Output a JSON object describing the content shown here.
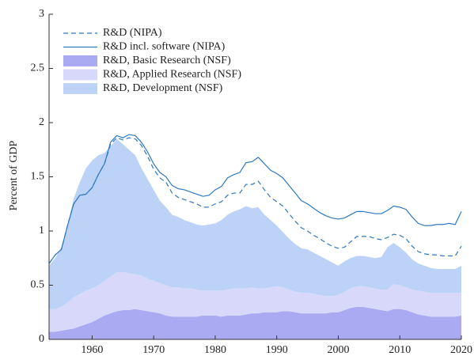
{
  "chart_data": {
    "type": "area",
    "ylabel": "Percent of GDP",
    "x": [
      1953,
      1954,
      1955,
      1956,
      1957,
      1958,
      1959,
      1960,
      1961,
      1962,
      1963,
      1964,
      1965,
      1966,
      1967,
      1968,
      1969,
      1970,
      1971,
      1972,
      1973,
      1974,
      1975,
      1976,
      1977,
      1978,
      1979,
      1980,
      1981,
      1982,
      1983,
      1984,
      1985,
      1986,
      1987,
      1988,
      1989,
      1990,
      1991,
      1992,
      1993,
      1994,
      1995,
      1996,
      1997,
      1998,
      1999,
      2000,
      2001,
      2002,
      2003,
      2004,
      2005,
      2006,
      2007,
      2008,
      2009,
      2010,
      2011,
      2012,
      2013,
      2014,
      2015,
      2016,
      2017,
      2018,
      2019,
      2020
    ],
    "xlim": [
      1953,
      2020
    ],
    "xticks": [
      1960,
      1970,
      1980,
      1990,
      2000,
      2010,
      2020
    ],
    "ylim": [
      0,
      3
    ],
    "yticks": [
      0,
      0.5,
      1,
      1.5,
      2,
      2.5,
      3
    ],
    "grid": false,
    "legend": "upper left",
    "series": [
      {
        "name": "R&D (NIPA)",
        "kind": "line",
        "dash": "dashed",
        "color": "#2f78c2",
        "values": [
          0.7,
          0.78,
          0.83,
          1.05,
          1.25,
          1.33,
          1.34,
          1.4,
          1.52,
          1.62,
          1.8,
          1.86,
          1.84,
          1.86,
          1.85,
          1.79,
          1.69,
          1.57,
          1.49,
          1.45,
          1.35,
          1.31,
          1.29,
          1.27,
          1.25,
          1.22,
          1.22,
          1.25,
          1.27,
          1.33,
          1.35,
          1.35,
          1.43,
          1.43,
          1.46,
          1.38,
          1.31,
          1.27,
          1.23,
          1.16,
          1.09,
          1.03,
          1.0,
          0.96,
          0.93,
          0.89,
          0.86,
          0.84,
          0.85,
          0.9,
          0.95,
          0.95,
          0.95,
          0.93,
          0.92,
          0.94,
          0.97,
          0.96,
          0.93,
          0.86,
          0.81,
          0.79,
          0.78,
          0.78,
          0.77,
          0.77,
          0.77,
          0.86
        ]
      },
      {
        "name": "R&D incl. software (NIPA)",
        "kind": "line",
        "dash": "solid",
        "color": "#2f78c2",
        "values": [
          0.7,
          0.78,
          0.83,
          1.05,
          1.25,
          1.33,
          1.34,
          1.4,
          1.52,
          1.62,
          1.82,
          1.88,
          1.86,
          1.89,
          1.88,
          1.82,
          1.73,
          1.62,
          1.54,
          1.5,
          1.42,
          1.39,
          1.38,
          1.36,
          1.34,
          1.32,
          1.33,
          1.38,
          1.41,
          1.49,
          1.52,
          1.54,
          1.63,
          1.64,
          1.68,
          1.62,
          1.56,
          1.53,
          1.49,
          1.42,
          1.35,
          1.28,
          1.25,
          1.21,
          1.17,
          1.14,
          1.12,
          1.11,
          1.12,
          1.15,
          1.18,
          1.18,
          1.17,
          1.16,
          1.16,
          1.19,
          1.23,
          1.22,
          1.2,
          1.13,
          1.07,
          1.05,
          1.05,
          1.06,
          1.06,
          1.07,
          1.06,
          1.18
        ]
      },
      {
        "name": "R&D, Basic Research (NSF)",
        "kind": "area",
        "color": "#aaaaf2",
        "values": [
          0.07,
          0.07,
          0.08,
          0.09,
          0.1,
          0.12,
          0.14,
          0.16,
          0.19,
          0.22,
          0.24,
          0.26,
          0.27,
          0.27,
          0.28,
          0.27,
          0.26,
          0.25,
          0.24,
          0.22,
          0.21,
          0.21,
          0.21,
          0.21,
          0.21,
          0.22,
          0.22,
          0.22,
          0.21,
          0.22,
          0.22,
          0.22,
          0.23,
          0.24,
          0.24,
          0.25,
          0.25,
          0.25,
          0.26,
          0.26,
          0.25,
          0.24,
          0.24,
          0.24,
          0.24,
          0.24,
          0.25,
          0.25,
          0.27,
          0.29,
          0.3,
          0.3,
          0.29,
          0.28,
          0.27,
          0.26,
          0.28,
          0.28,
          0.27,
          0.25,
          0.23,
          0.22,
          0.21,
          0.21,
          0.21,
          0.21,
          0.21,
          0.22
        ]
      },
      {
        "name": "R&D, Applied Research (NSF)",
        "kind": "area",
        "color": "#d8d8fa",
        "values": [
          0.21,
          0.21,
          0.22,
          0.25,
          0.29,
          0.3,
          0.31,
          0.31,
          0.31,
          0.32,
          0.34,
          0.36,
          0.35,
          0.34,
          0.32,
          0.32,
          0.3,
          0.29,
          0.28,
          0.28,
          0.27,
          0.27,
          0.26,
          0.26,
          0.25,
          0.23,
          0.23,
          0.23,
          0.24,
          0.24,
          0.25,
          0.25,
          0.24,
          0.24,
          0.23,
          0.22,
          0.23,
          0.24,
          0.22,
          0.2,
          0.19,
          0.19,
          0.19,
          0.18,
          0.17,
          0.16,
          0.15,
          0.16,
          0.17,
          0.18,
          0.19,
          0.19,
          0.19,
          0.19,
          0.19,
          0.2,
          0.23,
          0.22,
          0.21,
          0.21,
          0.22,
          0.22,
          0.22,
          0.22,
          0.22,
          0.22,
          0.22,
          0.21
        ]
      },
      {
        "name": "R&D, Development (NSF)",
        "kind": "area",
        "color": "#bcd3f7",
        "values": [
          0.4,
          0.47,
          0.55,
          0.71,
          0.91,
          1.03,
          1.13,
          1.18,
          1.2,
          1.18,
          1.2,
          1.23,
          1.18,
          1.14,
          1.1,
          0.99,
          0.92,
          0.84,
          0.76,
          0.72,
          0.67,
          0.65,
          0.63,
          0.61,
          0.6,
          0.6,
          0.61,
          0.62,
          0.65,
          0.69,
          0.71,
          0.73,
          0.76,
          0.73,
          0.75,
          0.68,
          0.62,
          0.56,
          0.51,
          0.47,
          0.44,
          0.41,
          0.4,
          0.38,
          0.36,
          0.34,
          0.31,
          0.27,
          0.28,
          0.28,
          0.28,
          0.28,
          0.28,
          0.28,
          0.3,
          0.39,
          0.38,
          0.35,
          0.32,
          0.28,
          0.25,
          0.24,
          0.23,
          0.22,
          0.22,
          0.22,
          0.22,
          0.25
        ]
      }
    ]
  }
}
